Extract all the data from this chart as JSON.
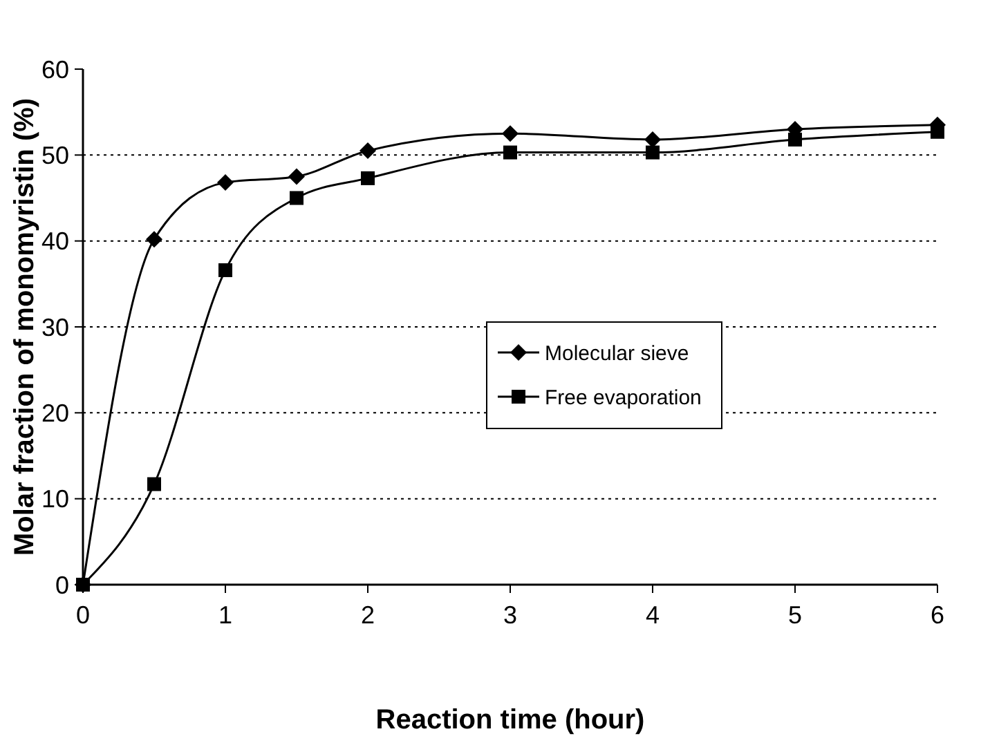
{
  "chart_data": {
    "type": "line",
    "xlabel": "Reaction time (hour)",
    "ylabel": "Molar fraction of monomyristin (%)",
    "x": [
      0,
      0.5,
      1,
      1.5,
      2,
      3,
      4,
      5,
      6
    ],
    "xlim": [
      0,
      6
    ],
    "xticks": [
      0,
      1,
      2,
      3,
      4,
      5,
      6
    ],
    "ylim": [
      0,
      60
    ],
    "yticks": [
      0,
      10,
      20,
      30,
      40,
      50,
      60
    ],
    "grid": "y",
    "legend": "right",
    "line_style": "solid",
    "series": [
      {
        "name": "Molecular sieve",
        "color": "#000000",
        "marker": "diamond",
        "values": [
          0,
          40.2,
          46.8,
          47.5,
          50.5,
          52.5,
          51.8,
          53,
          53.5
        ]
      },
      {
        "name": "Free evaporation",
        "color": "#000000",
        "marker": "square",
        "values": [
          0,
          11.7,
          36.6,
          45,
          47.3,
          50.3,
          50.3,
          51.8,
          52.7
        ]
      }
    ]
  }
}
